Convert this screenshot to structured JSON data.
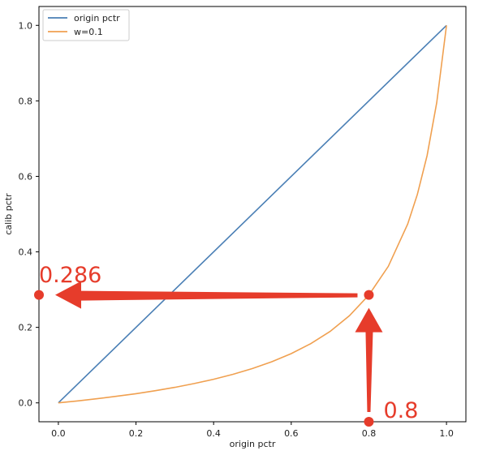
{
  "chart_data": {
    "type": "line",
    "title": "",
    "xlabel": "origin pctr",
    "ylabel": "calib pctr",
    "xlim": [
      -0.05,
      1.05
    ],
    "ylim": [
      -0.05,
      1.05
    ],
    "xticks": [
      0.0,
      0.2,
      0.4,
      0.6,
      0.8,
      1.0
    ],
    "yticks": [
      0.0,
      0.2,
      0.4,
      0.6,
      0.8,
      1.0
    ],
    "xtick_labels": [
      "0.0",
      "0.2",
      "0.4",
      "0.6",
      "0.8",
      "1.0"
    ],
    "ytick_labels": [
      "0.0",
      "0.2",
      "0.4",
      "0.6",
      "0.8",
      "1.0"
    ],
    "grid": false,
    "legend_position": "top-left",
    "series": [
      {
        "name": "origin pctr",
        "color": "#4a7fb5",
        "x": [
          0.0,
          1.0
        ],
        "y": [
          0.0,
          1.0
        ]
      },
      {
        "name": "w=0.1",
        "color": "#f0a050",
        "x": [
          0.0,
          0.05,
          0.1,
          0.15,
          0.2,
          0.25,
          0.3,
          0.35,
          0.4,
          0.45,
          0.5,
          0.55,
          0.6,
          0.65,
          0.7,
          0.75,
          0.8,
          0.85,
          0.9,
          0.925,
          0.95,
          0.975,
          1.0
        ],
        "y": [
          0.0,
          0.0052,
          0.011,
          0.0174,
          0.0244,
          0.0323,
          0.0411,
          0.0511,
          0.0625,
          0.0756,
          0.0909,
          0.1089,
          0.1304,
          0.1566,
          0.1892,
          0.2308,
          0.2857,
          0.3617,
          0.4737,
          0.5521,
          0.6552,
          0.7959,
          1.0
        ]
      }
    ],
    "annotations": [
      {
        "label": "0.286",
        "x": -0.05,
        "y": 0.286,
        "color": "#e63c2b"
      },
      {
        "label": "0.8",
        "x": 0.8,
        "y": -0.05,
        "color": "#e63c2b"
      }
    ],
    "highlight_point": {
      "x": 0.8,
      "y": 0.286
    }
  }
}
